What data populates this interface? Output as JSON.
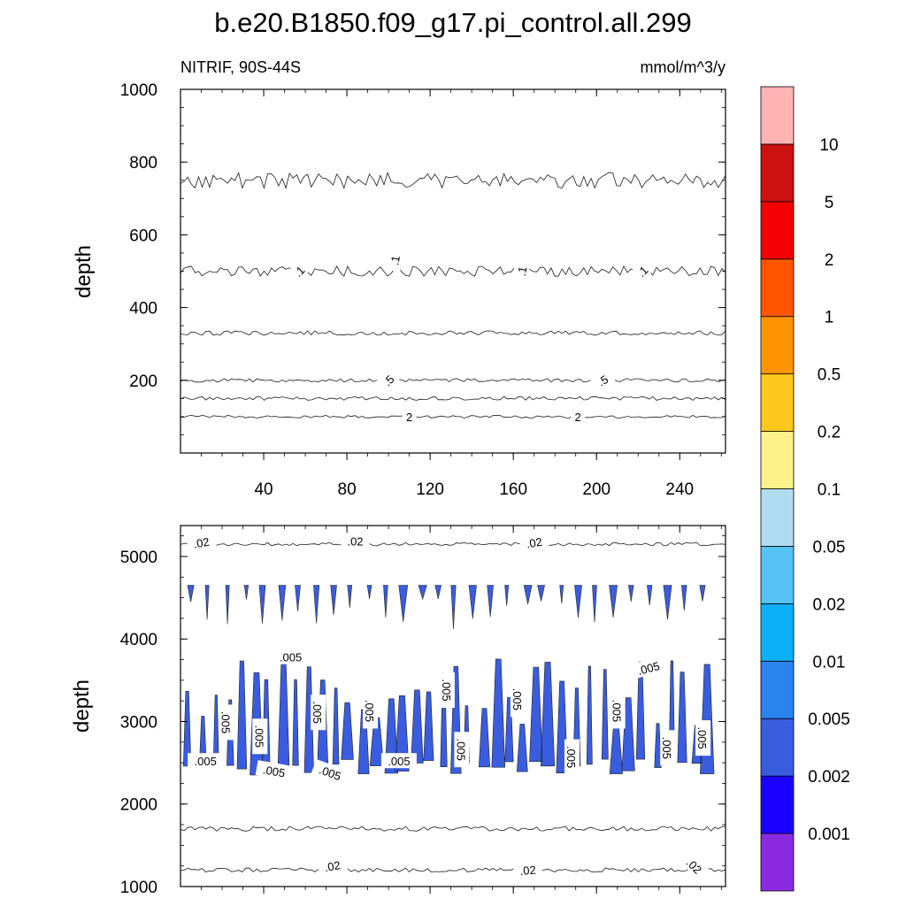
{
  "chart_data": [
    {
      "type": "contour",
      "title": "b.e20.B1850.f09_g17.pi_control.all.299",
      "variable_label": "NITRIF, 90S-44S",
      "units_label": "mmol/m^3/y",
      "ylabel": "depth",
      "xlabel": "",
      "xlim": [
        0,
        262
      ],
      "ylim": [
        1000,
        0
      ],
      "x_ticks": [
        40,
        80,
        120,
        160,
        200,
        240
      ],
      "x_tick_labels": [
        "40",
        "80",
        "120",
        "160",
        "200",
        "240"
      ],
      "y_ticks": [
        200,
        400,
        600,
        800,
        1000
      ],
      "y_tick_labels": [
        "200",
        "400",
        "600",
        "800",
        "1000"
      ],
      "bands": [
        {
          "from": 0,
          "to": 100,
          "level_index": 9
        },
        {
          "from": 100,
          "to": 150,
          "level_index": 8
        },
        {
          "from": 150,
          "to": 200,
          "level_index": 7
        },
        {
          "from": 200,
          "to": 330,
          "level_index": 6
        },
        {
          "from": 330,
          "to": 500,
          "level_index": 5
        },
        {
          "from": 500,
          "to": 750,
          "level_index": 4
        },
        {
          "from": 750,
          "to": 1000,
          "level_index": 3
        }
      ],
      "contours": [
        {
          "depth": 100,
          "amp": 4
        },
        {
          "depth": 150,
          "amp": 5
        },
        {
          "depth": 200,
          "amp": 5
        },
        {
          "depth": 330,
          "amp": 6
        },
        {
          "depth": 500,
          "amp": 14
        },
        {
          "depth": 750,
          "amp": 22
        }
      ],
      "contour_labels": [
        {
          "text": "2",
          "x": 110,
          "depth": 100,
          "angle": 0
        },
        {
          "text": "2",
          "x": 191,
          "depth": 100,
          "angle": 0
        },
        {
          "text": ".5",
          "x": 100,
          "depth": 200,
          "angle": -45
        },
        {
          "text": ".5",
          "x": 203,
          "depth": 200,
          "angle": -30
        },
        {
          "text": ".1",
          "x": 57,
          "depth": 500,
          "angle": -45
        },
        {
          "text": ".1",
          "x": 103,
          "depth": 530,
          "angle": -80
        },
        {
          "text": ".1",
          "x": 164,
          "depth": 500,
          "angle": -80
        },
        {
          "text": ".1",
          "x": 222,
          "depth": 500,
          "angle": -45
        }
      ]
    },
    {
      "type": "contour",
      "ylabel": "depth",
      "xlabel": "",
      "xlim": [
        0,
        262
      ],
      "ylim": [
        5375,
        1000
      ],
      "y_ticks": [
        1000,
        2000,
        3000,
        4000,
        5000
      ],
      "y_tick_labels": [
        "1000",
        "2000",
        "3000",
        "4000",
        "5000"
      ],
      "bands": [
        {
          "from": 1000,
          "to": 1200,
          "level_index": 3
        },
        {
          "from": 1200,
          "to": 1700,
          "level_index": 2
        },
        {
          "from": 1700,
          "to": 4650,
          "level_index": 1
        },
        {
          "from": 4650,
          "to": 5150,
          "level_index": 2
        },
        {
          "from": 5150,
          "to": 5375,
          "level_index": 3
        }
      ],
      "contours": [
        {
          "depth": 1200,
          "amp": 25
        },
        {
          "depth": 1700,
          "amp": 30
        },
        {
          "depth": 5150,
          "amp": 20
        }
      ],
      "contour_labels": [
        {
          "text": ".02",
          "x": 73,
          "depth": 1250,
          "angle": -10
        },
        {
          "text": ".02",
          "x": 167,
          "depth": 1200,
          "angle": -5
        },
        {
          "text": ".02",
          "x": 247,
          "depth": 1250,
          "angle": 45
        },
        {
          "text": ".005",
          "x": 12,
          "depth": 2520,
          "angle": 0
        },
        {
          "text": ".005",
          "x": 45,
          "depth": 2400,
          "angle": 10
        },
        {
          "text": ".005",
          "x": 72,
          "depth": 2380,
          "angle": 20
        },
        {
          "text": ".005",
          "x": 105,
          "depth": 2520,
          "angle": 0
        },
        {
          "text": ".005",
          "x": 22,
          "depth": 2990,
          "angle": 90
        },
        {
          "text": ".005",
          "x": 38,
          "depth": 2820,
          "angle": 90
        },
        {
          "text": ".005",
          "x": 66,
          "depth": 3110,
          "angle": 90
        },
        {
          "text": ".005",
          "x": 91,
          "depth": 3130,
          "angle": 90
        },
        {
          "text": ".005",
          "x": 135,
          "depth": 2660,
          "angle": 90
        },
        {
          "text": ".005",
          "x": 188,
          "depth": 2570,
          "angle": 90
        },
        {
          "text": ".005",
          "x": 234,
          "depth": 2680,
          "angle": 90
        },
        {
          "text": ".005",
          "x": 251,
          "depth": 2800,
          "angle": 90
        },
        {
          "text": ".005",
          "x": 128,
          "depth": 3380,
          "angle": 90
        },
        {
          "text": ".005",
          "x": 162,
          "depth": 3270,
          "angle": 90
        },
        {
          "text": ".005",
          "x": 210,
          "depth": 3130,
          "angle": 90
        },
        {
          "text": ".005",
          "x": 53,
          "depth": 3780,
          "angle": 0
        },
        {
          "text": ".005",
          "x": 225,
          "depth": 3650,
          "angle": -15
        },
        {
          "text": ".02",
          "x": 10,
          "depth": 5170,
          "angle": -10
        },
        {
          "text": ".02",
          "x": 84,
          "depth": 5190,
          "angle": 0
        },
        {
          "text": ".02",
          "x": 170,
          "depth": 5170,
          "angle": -10
        }
      ]
    }
  ],
  "colorbar": {
    "levels": [
      "10",
      "5",
      "2",
      "1",
      "0.5",
      "0.2",
      "0.1",
      "0.05",
      "0.02",
      "0.01",
      "0.005",
      "0.002",
      "0.001"
    ],
    "colors": [
      "#8a2be2",
      "#1a00ff",
      "#3a5de0",
      "#2a84ee",
      "#0bb0f8",
      "#55c3f4",
      "#b0dcf2",
      "#fdf18a",
      "#ffc81e",
      "#ff9400",
      "#ff5500",
      "#f50000",
      "#cc1111",
      "#ffb3b3"
    ]
  }
}
